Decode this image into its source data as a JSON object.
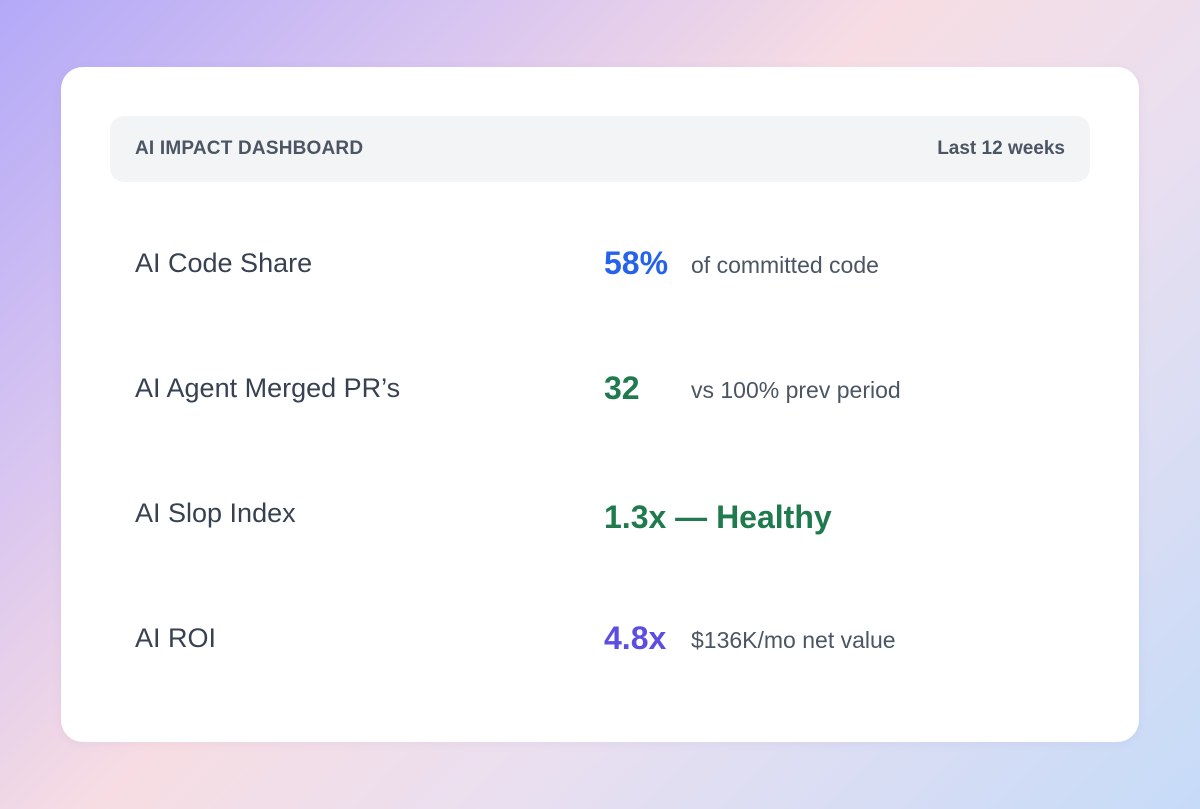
{
  "header": {
    "title": "AI IMPACT DASHBOARD",
    "period": "Last 12 weeks"
  },
  "metrics": [
    {
      "label": "AI Code Share",
      "value": "58%",
      "description": "of committed code",
      "color": "#2563eb"
    },
    {
      "label": "AI Agent Merged PR’s",
      "value": "32",
      "description": "vs 100% prev period",
      "color": "#1f7a4d"
    },
    {
      "label": "AI Slop Index",
      "value": "1.3x — Healthy",
      "description": "",
      "color": "#1f7a4d"
    },
    {
      "label": "AI ROI",
      "value": "4.8x",
      "description": "$136K/mo net value",
      "color": "#5b4ee0"
    }
  ]
}
